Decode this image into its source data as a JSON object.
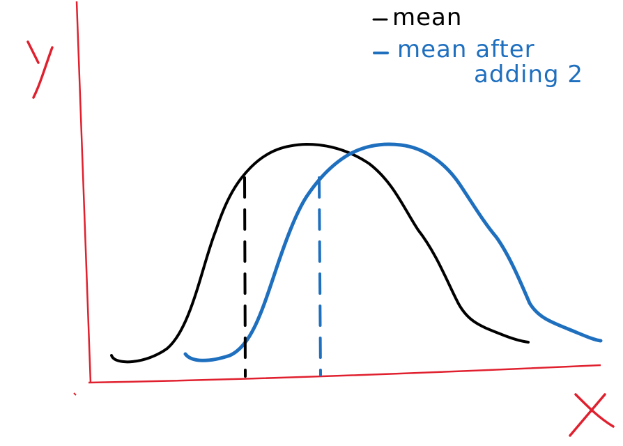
{
  "chart_data": {
    "type": "line",
    "title": "",
    "xlabel": "X",
    "ylabel": "Y",
    "legend_placement": "top-right",
    "grid": false,
    "colors": {
      "axes": "#e0202e",
      "original": "#000000",
      "shifted": "#1f6fbf"
    },
    "series": [
      {
        "name": "mean",
        "color": "#000000",
        "mean_line": true
      },
      {
        "name": "mean after adding 2",
        "legend_lines": [
          "mean after",
          "adding 2"
        ],
        "color": "#1f6fbf",
        "mean_line": true
      }
    ],
    "shift": 2
  }
}
